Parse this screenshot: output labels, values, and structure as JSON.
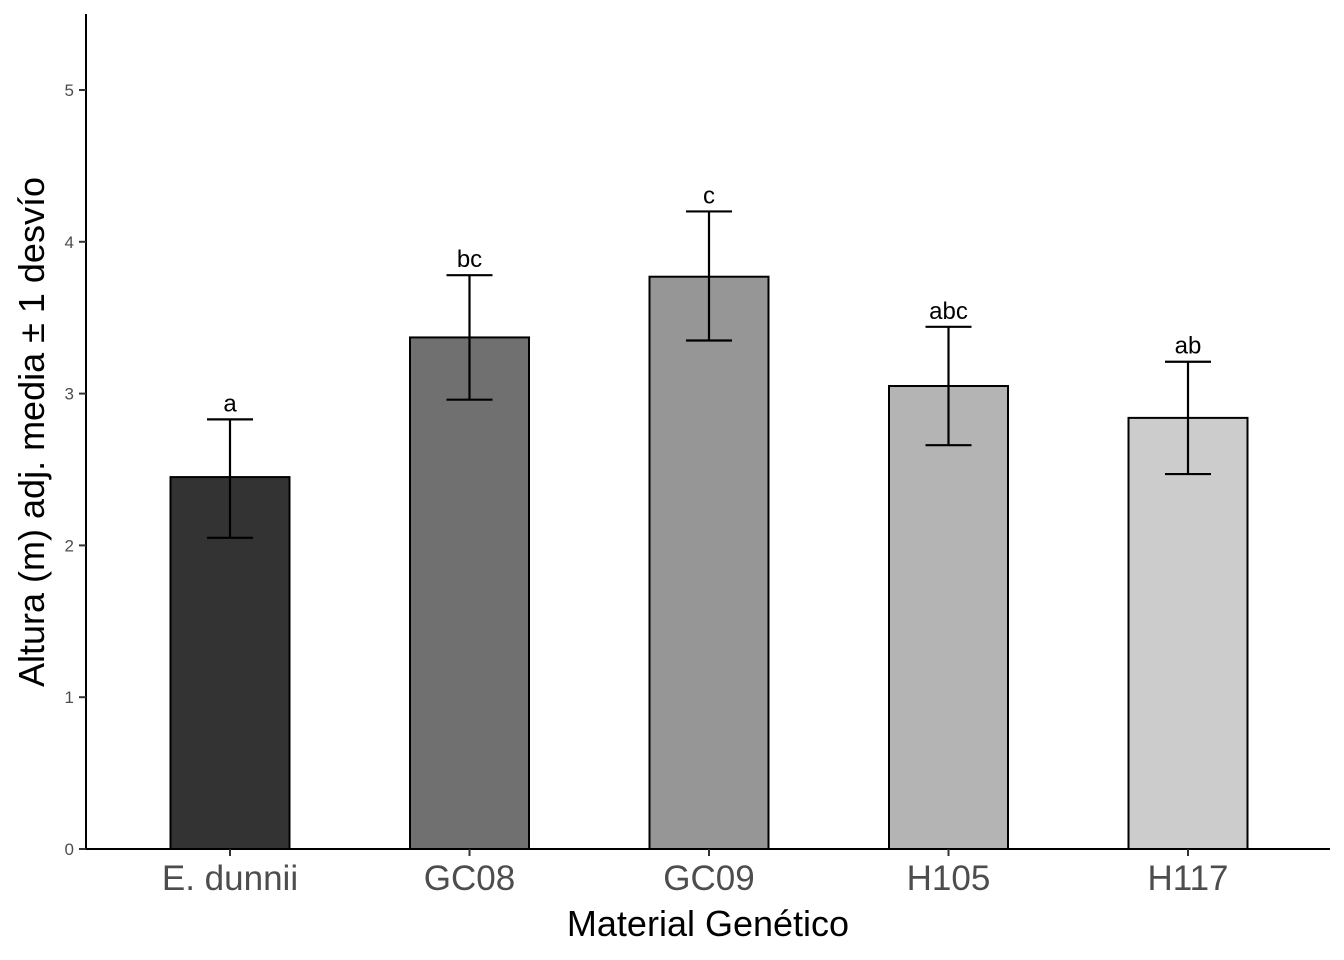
{
  "chart_data": {
    "type": "bar",
    "title": "",
    "xlabel": "Material Genético",
    "ylabel": "Altura (m) adj. media ± 1 desvío",
    "categories": [
      "E. dunnii",
      "GC08",
      "GC09",
      "H105",
      "H117"
    ],
    "values": [
      2.45,
      3.37,
      3.77,
      3.05,
      2.84
    ],
    "error_lower": [
      2.05,
      2.96,
      3.35,
      2.66,
      2.47
    ],
    "error_upper": [
      2.83,
      3.78,
      4.2,
      3.44,
      3.21
    ],
    "annotations": [
      "a",
      "bc",
      "c",
      "abc",
      "ab"
    ],
    "bar_colors": [
      "#333333",
      "#707070",
      "#969696",
      "#b4b4b4",
      "#cccccc"
    ],
    "ylim": [
      0,
      5.5
    ],
    "yticks": [
      0,
      1,
      2,
      3,
      4,
      5
    ],
    "grid": false,
    "legend": "none"
  }
}
